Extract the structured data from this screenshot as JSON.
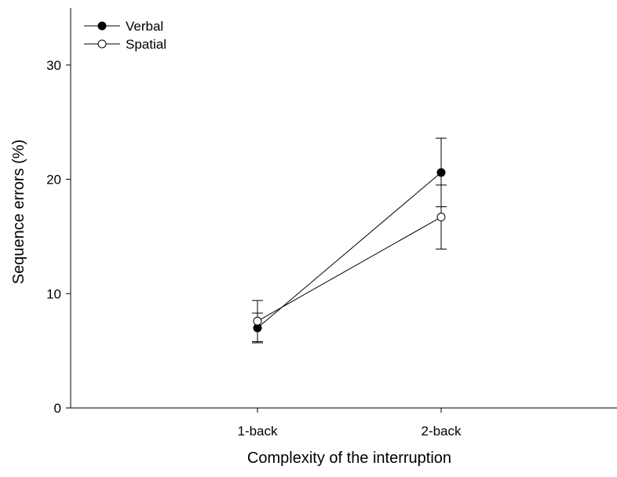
{
  "chart_data": {
    "type": "line",
    "title": "",
    "xlabel": "Complexity of the interruption",
    "ylabel": "Sequence errors (%)",
    "categories": [
      "1-back",
      "2-back"
    ],
    "ylim": [
      0,
      35
    ],
    "yticks": [
      0,
      10,
      20,
      30
    ],
    "grid": false,
    "legend_position": "top-left",
    "series": [
      {
        "name": "Verbal",
        "marker": "filled-circle",
        "color": "#000000",
        "values": [
          7.0,
          20.6
        ],
        "error": [
          1.3,
          3.0
        ]
      },
      {
        "name": "Spatial",
        "marker": "open-circle",
        "color": "#000000",
        "values": [
          7.6,
          16.7
        ],
        "error": [
          1.8,
          2.8
        ]
      }
    ]
  }
}
